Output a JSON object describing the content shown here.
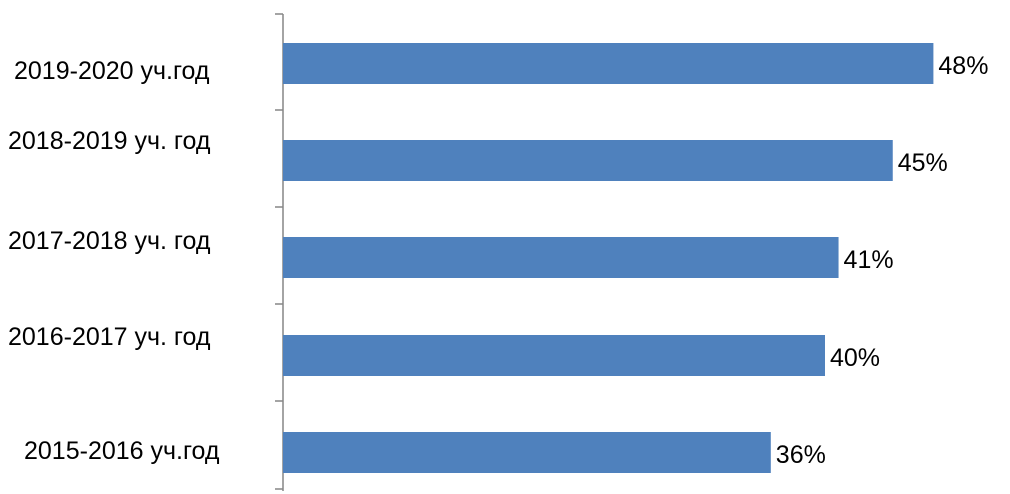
{
  "chart_data": {
    "type": "bar",
    "orientation": "horizontal",
    "categories": [
      "2019-2020  уч.год",
      "2018-2019 уч. год",
      "2017-2018 уч. год",
      "2016-2017 уч. год",
      "2015-2016 уч.год"
    ],
    "values": [
      48,
      45,
      41,
      40,
      36
    ],
    "value_labels": [
      "48%",
      "45%",
      "41%",
      "40%",
      "36%"
    ],
    "unit": "%",
    "bar_color": "#4F81BD",
    "axis_color": "#868686",
    "grid": false,
    "legend": "none",
    "title": "",
    "xlabel": "",
    "ylabel": ""
  }
}
